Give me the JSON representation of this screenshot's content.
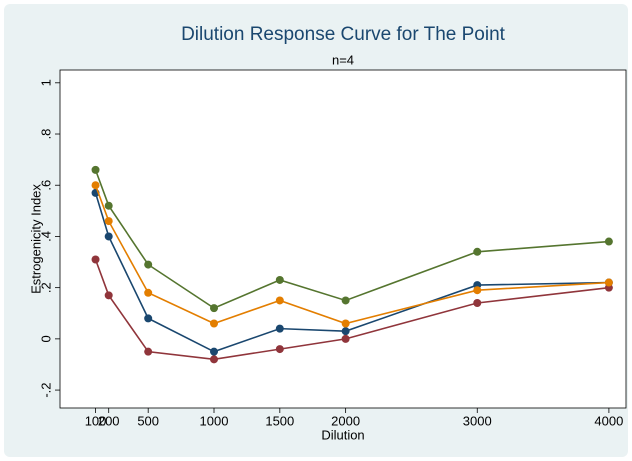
{
  "chart_data": {
    "type": "line",
    "title": "Dilution Response Curve for The Point",
    "subtitle": "n=4",
    "x_label": "Dilution",
    "y_label": "Estrogenicity Index",
    "x": [
      100,
      200,
      500,
      1000,
      1500,
      2000,
      3000,
      4000
    ],
    "series": [
      {
        "color": "#1a476f",
        "values": [
          0.57,
          0.4,
          0.08,
          -0.05,
          0.04,
          0.03,
          0.21,
          0.22
        ]
      },
      {
        "color": "#90353b",
        "values": [
          0.31,
          0.17,
          -0.05,
          -0.08,
          -0.04,
          0.0,
          0.14,
          0.2
        ]
      },
      {
        "color": "#e37e00",
        "values": [
          0.6,
          0.46,
          0.18,
          0.06,
          0.15,
          0.06,
          0.19,
          0.22
        ]
      },
      {
        "color": "#55752f",
        "values": [
          0.66,
          0.52,
          0.29,
          0.12,
          0.23,
          0.15,
          0.34,
          0.38
        ]
      }
    ],
    "xlim": [
      -170,
      4130
    ],
    "xticks": [
      100,
      200,
      500,
      1000,
      1500,
      2000,
      3000,
      4000
    ],
    "ylim": [
      -0.27,
      1.05
    ],
    "yticks": [
      {
        "value": -0.2,
        "label": "-.2"
      },
      0,
      {
        "value": 0.2,
        "label": ".2"
      },
      {
        "value": 0.4,
        "label": ".4"
      },
      {
        "value": 0.6,
        "label": ".6"
      },
      {
        "value": 0.8,
        "label": ".8"
      },
      1
    ]
  }
}
